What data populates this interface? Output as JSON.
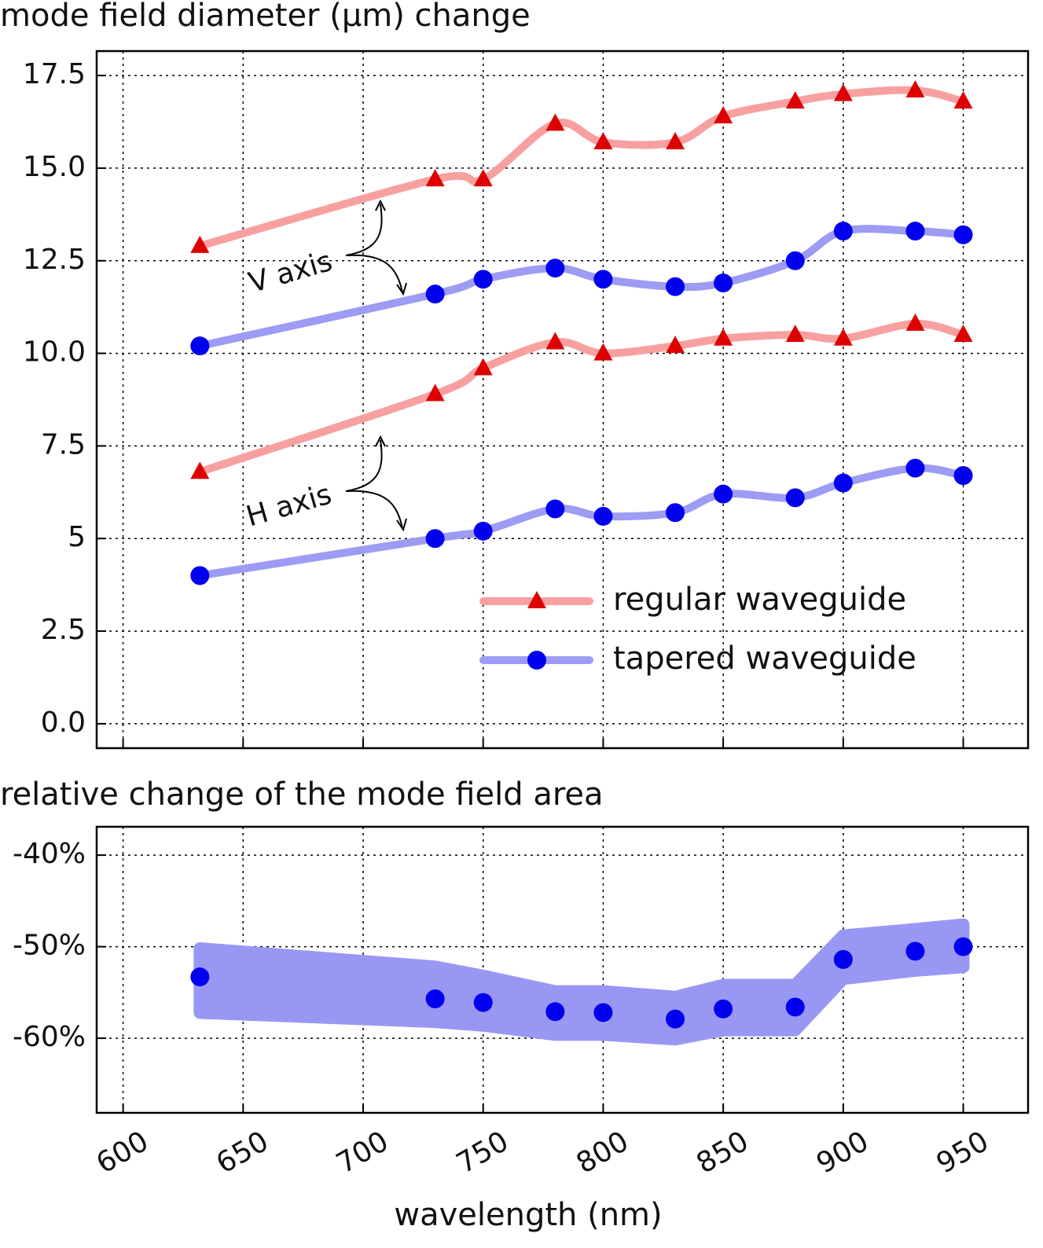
{
  "chart_data": [
    {
      "type": "line",
      "title": "mode field diameter (μm) change",
      "x": [
        632,
        730,
        750,
        780,
        800,
        830,
        850,
        880,
        900,
        930,
        950
      ],
      "xlim": [
        589,
        977
      ],
      "xticks": [
        600,
        650,
        700,
        750,
        800,
        850,
        900,
        950
      ],
      "ylim": [
        -0.66,
        18.16
      ],
      "yticks": [
        {
          "value": 0,
          "label": "0.0"
        },
        2.5,
        5,
        7.5,
        {
          "value": 10,
          "label": "10.0"
        },
        12.5,
        {
          "value": 15,
          "label": "15.0"
        },
        17.5
      ],
      "grid": true,
      "legend": "lower right",
      "series": [
        {
          "name": "regular waveguide",
          "color": "#f8a0a0",
          "marker_color": "#dd0000",
          "marker": "triangle",
          "values": [
            12.9,
            14.7,
            14.7,
            16.2,
            15.7,
            15.7,
            16.4,
            16.8,
            17.0,
            17.1,
            16.8
          ]
        },
        {
          "name": "tapered waveguide",
          "color": "#9c9cf4",
          "marker_color": "#0000ee",
          "marker": "circle",
          "values": [
            10.2,
            11.6,
            12.0,
            12.3,
            12.0,
            11.8,
            11.9,
            12.5,
            13.3,
            13.3,
            13.2
          ]
        },
        {
          "color": "#f8a0a0",
          "marker_color": "#dd0000",
          "marker": "triangle",
          "values": [
            6.8,
            8.9,
            9.6,
            10.3,
            10.0,
            10.2,
            10.4,
            10.5,
            10.4,
            10.8,
            10.5
          ]
        },
        {
          "color": "#9c9cf4",
          "marker_color": "#0000ee",
          "marker": "circle",
          "values": [
            4.0,
            5.0,
            5.2,
            5.8,
            5.6,
            5.7,
            6.2,
            6.1,
            6.5,
            6.9,
            6.7
          ]
        }
      ],
      "annotations": [
        "V axis",
        "H axis"
      ]
    },
    {
      "type": "scatter",
      "title": "relative change of the mode field area",
      "xlabel": "wavelength (nm)",
      "x": [
        632,
        730,
        750,
        780,
        800,
        830,
        850,
        880,
        900,
        930,
        950
      ],
      "xlim": [
        589,
        977
      ],
      "xticks": [
        600,
        650,
        700,
        750,
        800,
        850,
        900,
        950
      ],
      "ylim": [
        -68.15,
        -36.9
      ],
      "yticks": [
        {
          "value": -60,
          "label": "-60%"
        },
        {
          "value": -50,
          "label": "-50%"
        },
        {
          "value": -40,
          "label": "-40%"
        }
      ],
      "grid": true,
      "color": "#0000ee",
      "band_color": "#9898f4",
      "values": [
        -53.3,
        -55.7,
        -56.1,
        -57.1,
        -57.2,
        -57.9,
        -56.8,
        -56.6,
        -51.4,
        -50.5,
        -50.0
      ],
      "band_upper": [
        -50.2,
        -52.2,
        -53.2,
        -54.9,
        -54.9,
        -55.5,
        -54.2,
        -54.2,
        -48.8,
        -48.1,
        -47.6
      ],
      "band_lower": [
        -57.2,
        -58.2,
        -58.6,
        -59.6,
        -59.6,
        -60.1,
        -59.1,
        -59.1,
        -53.5,
        -52.6,
        -52.2
      ]
    }
  ]
}
